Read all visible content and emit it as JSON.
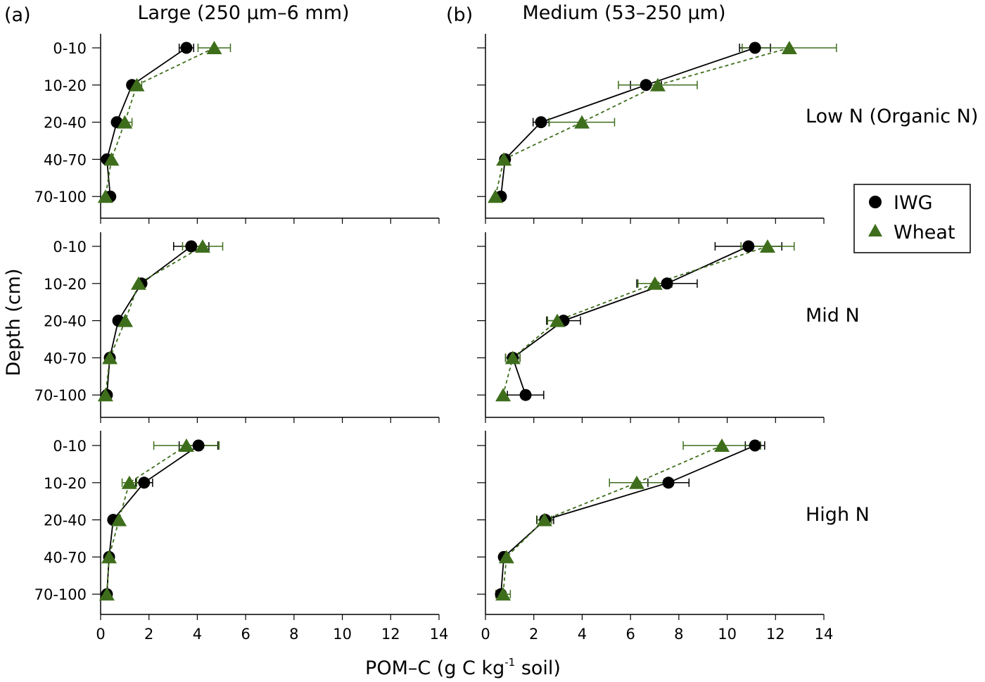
{
  "figure": {
    "panel_a_label": "(a)",
    "panel_a_title": "Large (250 µm–6 mm)",
    "panel_b_label": "(b)",
    "panel_b_title": "Medium (53–250 µm)",
    "ylabel": "Depth (cm)",
    "xlabel_main": "POM–C (g C kg",
    "xlabel_sup": "-1",
    "xlabel_tail": " soil)",
    "row_labels": [
      "Low N (Organic N)",
      "Mid N",
      "High N"
    ],
    "legend": [
      {
        "name": "IWG",
        "marker": "circle",
        "color": "#000000"
      },
      {
        "name": "Wheat",
        "marker": "triangle",
        "color": "#3e6e1c"
      }
    ]
  },
  "chart_data": [
    {
      "type": "line",
      "panel": "a",
      "row": "Low N (Organic N)",
      "categories": [
        "0-10",
        "10-20",
        "20-40",
        "40-70",
        "70-100"
      ],
      "xlim": [
        0,
        14
      ],
      "xticks": [
        0,
        2,
        4,
        6,
        8,
        10,
        12,
        14
      ],
      "series": [
        {
          "name": "IWG",
          "values": [
            3.55,
            1.3,
            0.67,
            0.26,
            0.4
          ],
          "errors": [
            0.3,
            0,
            0,
            0,
            0
          ]
        },
        {
          "name": "Wheat",
          "values": [
            4.7,
            1.5,
            1.0,
            0.45,
            0.2
          ],
          "errors": [
            0.67,
            0.2,
            0.3,
            0,
            0
          ]
        }
      ]
    },
    {
      "type": "line",
      "panel": "b",
      "row": "Low N (Organic N)",
      "categories": [
        "0-10",
        "10-20",
        "20-40",
        "40-70",
        "70-100"
      ],
      "xlim": [
        0,
        14
      ],
      "xticks": [
        0,
        2,
        4,
        6,
        8,
        10,
        12,
        14
      ],
      "series": [
        {
          "name": "IWG",
          "values": [
            11.15,
            6.64,
            2.3,
            0.81,
            0.64
          ],
          "errors": [
            0.64,
            0.64,
            0.33,
            0,
            0
          ]
        },
        {
          "name": "Wheat",
          "values": [
            12.57,
            7.13,
            3.99,
            0.76,
            0.41
          ],
          "errors": [
            1.95,
            1.63,
            1.35,
            0,
            0
          ]
        }
      ]
    },
    {
      "type": "line",
      "panel": "a",
      "row": "Mid N",
      "categories": [
        "0-10",
        "10-20",
        "20-40",
        "40-70",
        "70-100"
      ],
      "xlim": [
        0,
        14
      ],
      "xticks": [
        0,
        2,
        4,
        6,
        8,
        10,
        12,
        14
      ],
      "series": [
        {
          "name": "IWG",
          "values": [
            3.75,
            1.69,
            0.73,
            0.38,
            0.26
          ],
          "errors": [
            0.73,
            0,
            0,
            0,
            0
          ]
        },
        {
          "name": "Wheat",
          "values": [
            4.22,
            1.57,
            1.02,
            0.38,
            0.2
          ],
          "errors": [
            0.83,
            0,
            0,
            0,
            0
          ]
        }
      ]
    },
    {
      "type": "line",
      "panel": "b",
      "row": "Mid N",
      "categories": [
        "0-10",
        "10-20",
        "20-40",
        "40-70",
        "70-100"
      ],
      "xlim": [
        0,
        14
      ],
      "xticks": [
        0,
        2,
        4,
        6,
        8,
        10,
        12,
        14
      ],
      "series": [
        {
          "name": "IWG",
          "values": [
            10.88,
            7.51,
            3.23,
            1.13,
            1.66
          ],
          "errors": [
            1.38,
            1.25,
            0.7,
            0.3,
            0.75
          ],
          "_": 0
        },
        {
          "name": "Wheat",
          "values": [
            11.67,
            7.01,
            2.97,
            1.13,
            0.73
          ],
          "errors": [
            1.1,
            0.7,
            0.4,
            0.3,
            0
          ]
        }
      ]
    },
    {
      "type": "line",
      "panel": "a",
      "row": "High N",
      "categories": [
        "0-10",
        "10-20",
        "20-40",
        "40-70",
        "70-100"
      ],
      "xlim": [
        0,
        14
      ],
      "xticks": [
        0,
        2,
        4,
        6,
        8,
        10,
        12,
        14
      ],
      "series": [
        {
          "name": "IWG",
          "values": [
            4.05,
            1.8,
            0.52,
            0.35,
            0.26
          ],
          "errors": [
            0.8,
            0.35,
            0,
            0,
            0
          ]
        },
        {
          "name": "Wheat",
          "values": [
            3.55,
            1.19,
            0.76,
            0.35,
            0.26
          ],
          "errors": [
            1.35,
            0.3,
            0,
            0,
            0
          ]
        }
      ]
    },
    {
      "type": "line",
      "panel": "b",
      "row": "High N",
      "categories": [
        "0-10",
        "10-20",
        "20-40",
        "40-70",
        "70-100"
      ],
      "xlim": [
        0,
        14
      ],
      "xticks": [
        0,
        2,
        4,
        6,
        8,
        10,
        12,
        14
      ],
      "series": [
        {
          "name": "IWG",
          "values": [
            11.15,
            7.57,
            2.47,
            0.76,
            0.64
          ],
          "errors": [
            0.4,
            0.85,
            0.35,
            0,
            0
          ]
        },
        {
          "name": "Wheat",
          "values": [
            9.78,
            6.26,
            2.44,
            0.87,
            0.73
          ],
          "errors": [
            1.6,
            1.13,
            0.3,
            0,
            0.3
          ]
        }
      ]
    }
  ]
}
